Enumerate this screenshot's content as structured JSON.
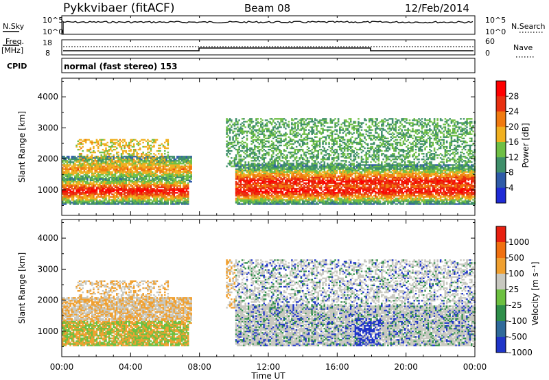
{
  "header": {
    "station": "Pykkvibaer (fitACF)",
    "beam": "Beam 08",
    "date": "12/Feb/2014"
  },
  "strip_panels": {
    "nsky_label": "N.Sky",
    "nsky_ticks": [
      "10^5",
      "10^0"
    ],
    "nsky_right_ticks": [
      "10^5",
      "10^0"
    ],
    "nsearch_label": "N.Search",
    "freq_label": "Freq.",
    "freq_units": "[MHz]",
    "freq_ticks": [
      "18",
      "8"
    ],
    "nave_ticks": [
      "60",
      "0"
    ],
    "nave_label": "Nave",
    "cpid_label": "CPID",
    "cpid_text": "normal (fast stereo) 153"
  },
  "chart_data": [
    {
      "type": "heatmap",
      "title": "",
      "ylabel": "Slant Range [km]",
      "ylim": [
        180,
        4600
      ],
      "yticks": [
        "1000",
        "2000",
        "3000",
        "4000"
      ],
      "colorbar_label": "Power [dB]",
      "colorbar_ticks": [
        "4",
        "8",
        "12",
        "16",
        "20",
        "24",
        "28"
      ],
      "colorbar_colors": [
        "#1f2bd6",
        "#2f5ba8",
        "#3f8f6a",
        "#6fbf45",
        "#f0b020",
        "#f07a10",
        "#e83010",
        "#ff0000"
      ],
      "colorbar_range": [
        0,
        32
      ]
    },
    {
      "type": "heatmap",
      "title": "",
      "ylabel": "Slant Range [km]",
      "ylim": [
        180,
        4600
      ],
      "yticks": [
        "1000",
        "2000",
        "3000",
        "4000"
      ],
      "colorbar_label": "Velocity [m s⁻¹]",
      "colorbar_ticks": [
        "1000",
        "500",
        "100",
        "25",
        "-25",
        "-100",
        "-500",
        "-1000"
      ],
      "colorbar_colors": [
        "#1f35c8",
        "#2f6a9a",
        "#2f8f4a",
        "#6cc040",
        "#c8c8c0",
        "#f0a030",
        "#f07010",
        "#e82010"
      ]
    }
  ],
  "time_axis": {
    "label": "Time UT",
    "ticks": [
      "00:00",
      "04:00",
      "08:00",
      "12:00",
      "16:00",
      "20:00",
      "00:00"
    ]
  }
}
